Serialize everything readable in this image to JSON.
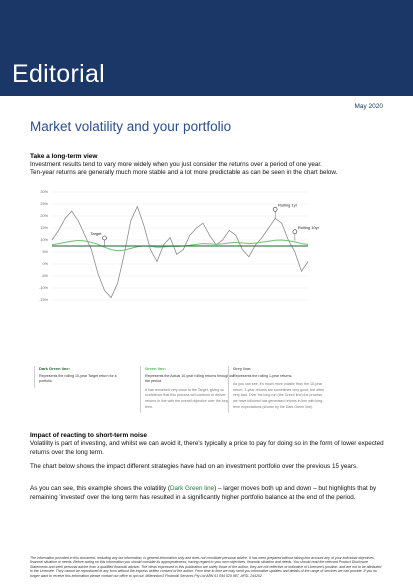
{
  "header": {
    "brand": "Editorial",
    "date": "May 2020",
    "title": "Market volatility and your portfolio"
  },
  "sections": [
    {
      "heading": "Take a long-term view",
      "paragraphs": [
        "Investment results tend to vary more widely when you just consider the returns over a period of one year.",
        "Ten-year returns are generally much more stable and a lot more predictable as can be seen in the chart below."
      ]
    },
    {
      "heading": "Impact of reacting to short-term noise",
      "paragraphs": [
        "Volatility is part of investing, and whilst we can avoid it, there's typically a price to pay for doing so in the form of lower expected returns over the long term.",
        "The chart below shows the impact different strategies have had on an investment portfolio over the previous 15 years.",
        [
          "As you can see, this example shows the volatility (",
          "Dark Green line",
          ") – larger moves both up and down – but highlights that by remaining 'invested' over the long term has resulted in a significantly higher portfolio balance at the end of the period."
        ]
      ]
    }
  ],
  "chart_data": {
    "type": "line",
    "yticks": [
      {
        "value": 30,
        "label": "30%"
      },
      {
        "value": 25,
        "label": "25%"
      },
      {
        "value": 20,
        "label": "20%"
      },
      {
        "value": 15,
        "label": "15%"
      },
      {
        "value": 10,
        "label": "10%"
      },
      {
        "value": 5,
        "label": "5%"
      },
      {
        "value": 0,
        "label": "0%"
      },
      {
        "value": -5,
        "label": "-5%"
      },
      {
        "value": -10,
        "label": "-10%"
      },
      {
        "value": -15,
        "label": "-15%"
      }
    ],
    "ylim": [
      -15,
      30
    ],
    "grid": true,
    "annotations": [
      "Target",
      "Rolling 1yr",
      "Rolling 10yr"
    ],
    "series": [
      {
        "name": "Rolling 1yr",
        "color": "#8c8c8c",
        "values": [
          10,
          14,
          19,
          22,
          18,
          12,
          6,
          -4,
          -11,
          -14,
          -8,
          4,
          18,
          24,
          16,
          6,
          1,
          8,
          11,
          4,
          6,
          12,
          15,
          17,
          12,
          8,
          10,
          14,
          12,
          6,
          3,
          8,
          11,
          15,
          19,
          17,
          10,
          5,
          -3,
          1
        ]
      },
      {
        "name": "Rolling 10yr",
        "color": "#6cc070",
        "values": [
          8,
          8.5,
          9,
          9.5,
          9.8,
          9.6,
          9,
          8.2,
          7,
          6,
          5.5,
          5.8,
          6.5,
          7.2,
          7.5,
          7.4,
          7,
          7.1,
          7.4,
          7.3,
          7.5,
          7.8,
          8.2,
          8.5,
          8.4,
          8.2,
          8.4,
          8.8,
          9,
          8.8,
          8.5,
          8.7,
          9.1,
          9.5,
          9.9,
          10,
          9.7,
          9.2,
          8.5,
          8.2
        ]
      },
      {
        "name": "Target",
        "color": "#1b5e2f",
        "values": [
          7.5,
          7.5,
          7.5,
          7.5,
          7.5,
          7.5,
          7.5,
          7.5,
          7.5,
          7.5,
          7.5,
          7.5,
          7.5,
          7.5,
          7.5,
          7.5,
          7.5,
          7.5,
          7.5,
          7.5,
          7.5,
          7.5,
          7.5,
          7.5,
          7.5,
          7.5,
          7.5,
          7.5,
          7.5,
          7.5,
          7.5,
          7.5,
          7.5,
          7.5,
          7.5,
          7.5,
          7.5,
          7.5,
          7.5,
          7.5
        ]
      }
    ]
  },
  "legend_boxes": [
    {
      "title": "Dark Green line:",
      "lines": [
        "Represents the rolling 10-year Target return for a portfolio."
      ]
    },
    {
      "title": "Green line:",
      "lines": [
        "Represents the Actual 10-year rolling returns throughout the period.",
        "It has remained very close to the Target, giving us confidence that this process will continue to deliver returns in line with the overall objective over the long term."
      ]
    },
    {
      "title": "Grey line:",
      "lines": [
        "Represents the rolling 1-year returns.",
        "As you can see, it's much more volatile than the 10-year return. 1-year returns are sometimes very good, but often very bad. Over the long run (the Green line) the process we have followed has generated returns in line with long-term expectations (shown by the Dark Green line)."
      ]
    }
  ],
  "footer": {
    "disclaimer": "The information provided in this document, including any tax information, is general information only and does not constitute personal advice. It has been prepared without taking into account any of your individual objectives, financial situation or needs. Before acting on this information you should consider its appropriateness, having regard to your own objectives, financial situation and needs. You should read the relevant Product Disclosure Statements and seek personal advice from a qualified financial adviser. The views expressed in this publication are solely those of the author; they are not reflective or indicative of Licensee's position, and are not to be attributed to the Licensee. They cannot be reproduced in any form without the express written consent of the author. From time to time we may send you informative updates and details of the range of services we can provide. If you no longer want to receive this information please contact our office to opt out. Millennium3 Financial Services Pty Ltd ABN 61 094 529 987, AFSL 244252."
  }
}
